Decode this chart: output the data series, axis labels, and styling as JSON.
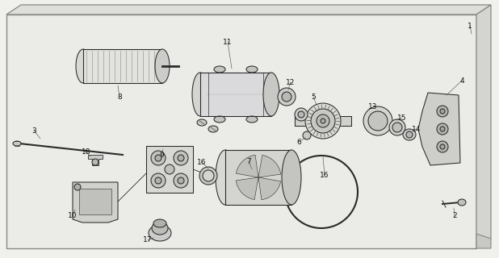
{
  "bg_color": "#f0f0ec",
  "line_color": "#2a2a2a",
  "shelf_fill": "#ebebE7",
  "shelf_top": "#dededa",
  "shelf_right": "#d4d4d0",
  "part_color": "#d8d8d4",
  "label_fontsize": 6.5
}
